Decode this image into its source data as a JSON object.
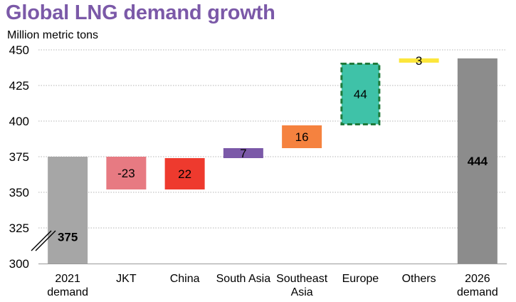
{
  "chart_data": {
    "type": "bar",
    "subtype": "waterfall",
    "title": "Global LNG demand growth",
    "ylabel": "Million metric tons",
    "xlabel": "",
    "ylim": [
      300,
      450
    ],
    "yticks": [
      300,
      325,
      350,
      375,
      400,
      425,
      450
    ],
    "axis_break": true,
    "grid": "horizontal, dotted",
    "legend": "none",
    "categories": [
      [
        "2021",
        "demand"
      ],
      [
        "JKT"
      ],
      [
        "China"
      ],
      [
        "South Asia"
      ],
      [
        "Southeast",
        "Asia"
      ],
      [
        "Europe"
      ],
      [
        "Others"
      ],
      [
        "2026",
        "demand"
      ]
    ],
    "bars": [
      {
        "kind": "total",
        "start": 300,
        "end": 375,
        "label": "375",
        "color": "#a6a6a6",
        "bold": true
      },
      {
        "kind": "delta",
        "start": 375,
        "end": 352,
        "label": "-23",
        "color": "#e77a82",
        "bold": false
      },
      {
        "kind": "delta",
        "start": 352,
        "end": 374,
        "label": "22",
        "color": "#ee3a2e",
        "bold": false
      },
      {
        "kind": "delta",
        "start": 374,
        "end": 381,
        "label": "7",
        "color": "#7b59a8",
        "bold": false
      },
      {
        "kind": "delta",
        "start": 381,
        "end": 397,
        "label": "16",
        "color": "#f5823f",
        "bold": false
      },
      {
        "kind": "delta",
        "start": 397,
        "end": 441,
        "label": "44",
        "color": "#3fc2a8",
        "bold": false,
        "highlight": true
      },
      {
        "kind": "delta",
        "start": 441,
        "end": 444,
        "label": "3",
        "color": "#fce63c",
        "bold": false
      },
      {
        "kind": "total",
        "start": 300,
        "end": 444,
        "label": "444",
        "color": "#8c8c8c",
        "bold": true
      }
    ],
    "colors": {
      "title": "#7b59a8",
      "gridline": "#b4b4b4",
      "axis_text": "#000000",
      "highlight_border": "#1f7a3a"
    }
  }
}
